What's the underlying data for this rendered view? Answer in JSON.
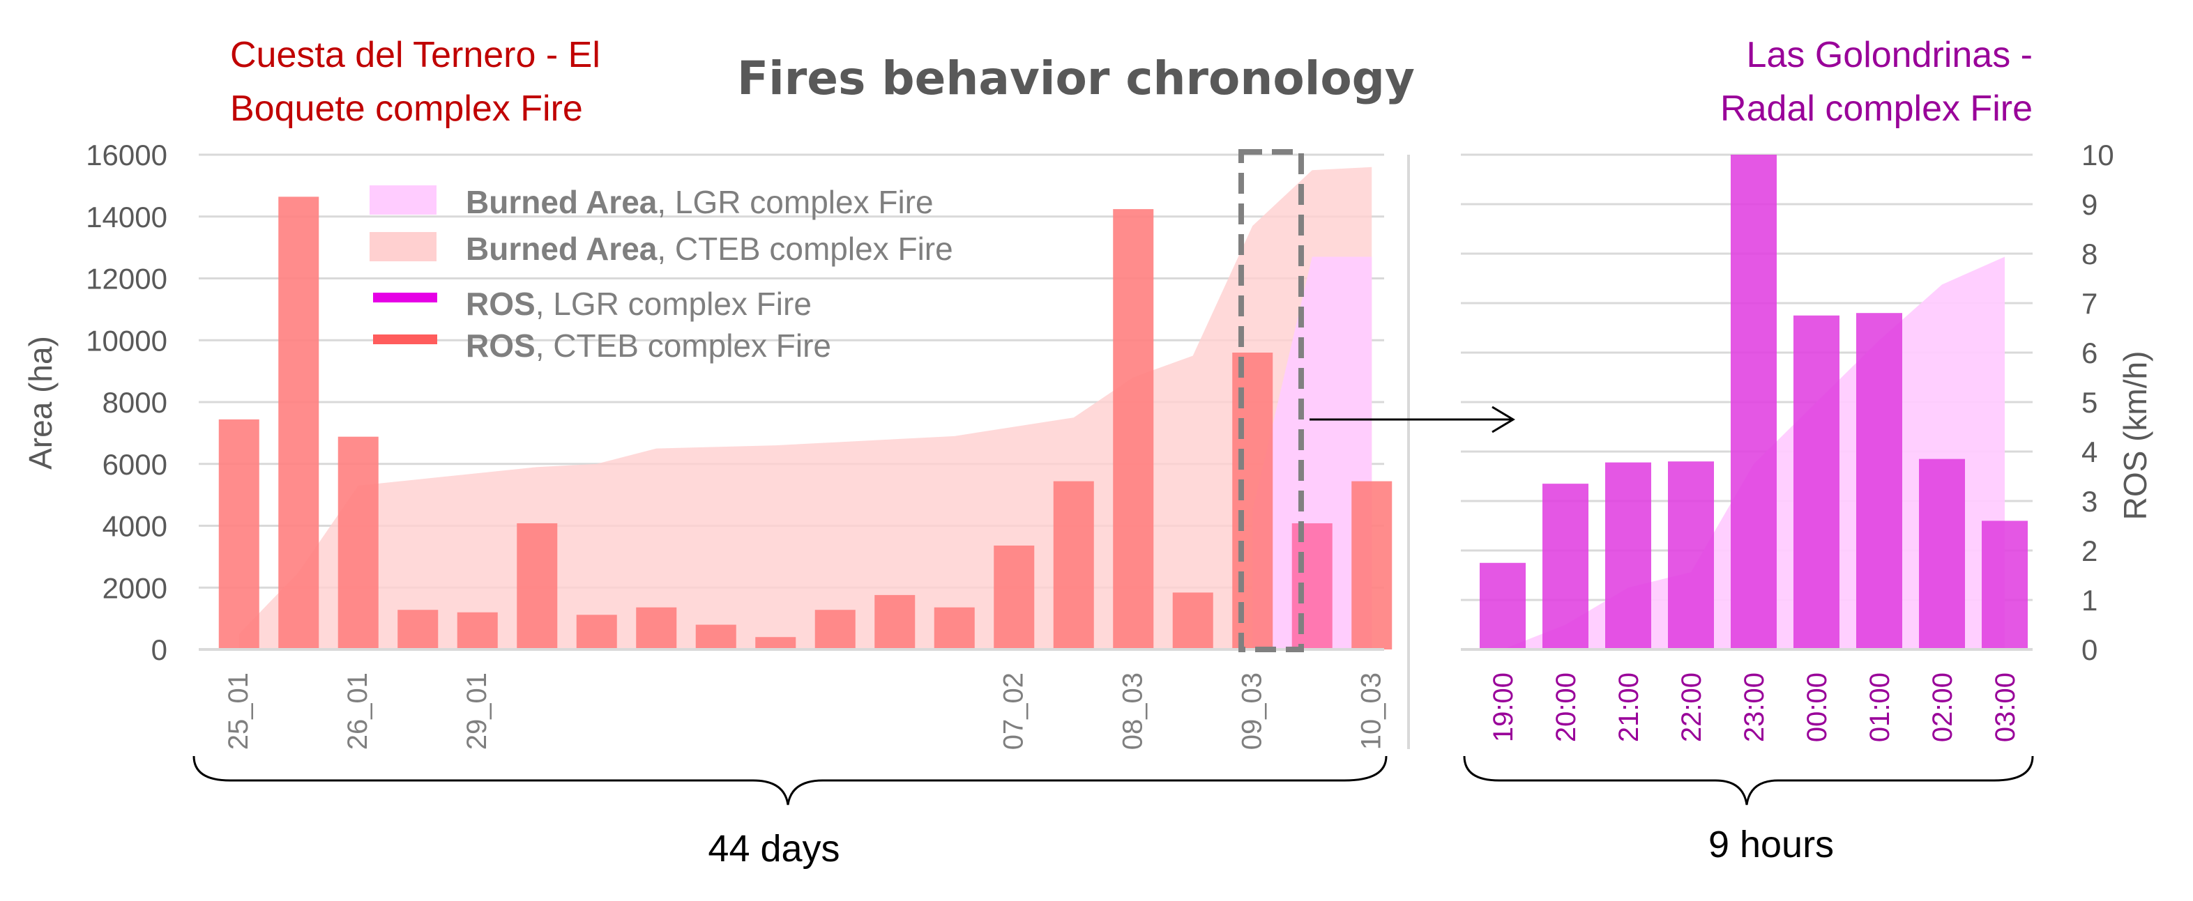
{
  "title": "Fires behavior chronology",
  "fire_labels": {
    "left_line1": "Cuesta del Ternero - El",
    "left_line2": "Boquete complex Fire",
    "right_line1": "Las Golondrinas -",
    "right_line2": "Radal complex Fire"
  },
  "legend": [
    {
      "bold": "Burned Area",
      "rest": ", LGR complex Fire",
      "color": "#ffccff",
      "kind": "area"
    },
    {
      "bold": "Burned Area",
      "rest": ", CTEB complex Fire",
      "color": "#ffd0d0",
      "kind": "area"
    },
    {
      "bold": "ROS",
      "rest": ", LGR complex Fire",
      "color": "#e600e6",
      "kind": "line"
    },
    {
      "bold": "ROS",
      "rest": ", CTEB complex Fire",
      "color": "#ff5c5c",
      "kind": "line"
    }
  ],
  "colors": {
    "cteb_bar": "#ff7f7f",
    "cteb_area": "#ffd0d0",
    "lgr_bar": "#e040e0",
    "lgr_area": "#ffccff",
    "zoom_box": "#808080"
  },
  "span_labels": {
    "left": "44 days",
    "right": "9 hours"
  },
  "chart_data": [
    {
      "type": "bar",
      "panel": "left",
      "ylabel": "Area (ha)",
      "ylim": [
        0,
        16000
      ],
      "yticks": [
        0,
        2000,
        4000,
        6000,
        8000,
        10000,
        12000,
        14000,
        16000
      ],
      "y2lim": [
        0,
        10
      ],
      "x_labels": [
        {
          "index": 0,
          "label": "25_01"
        },
        {
          "index": 2,
          "label": "26_01"
        },
        {
          "index": 4,
          "label": "29_01"
        },
        {
          "index": 13,
          "label": "07_02"
        },
        {
          "index": 15,
          "label": "08_03"
        },
        {
          "index": 17,
          "label": "09_03"
        },
        {
          "index": 19,
          "label": "10_03"
        }
      ],
      "series": [
        {
          "name": "ROS, CTEB complex Fire",
          "axis": "y2",
          "values": [
            4.65,
            9.15,
            4.3,
            0.8,
            0.75,
            2.55,
            0.7,
            0.85,
            0.5,
            0.25,
            0.8,
            1.1,
            0.85,
            2.1,
            3.4,
            8.9,
            1.15,
            6.0,
            null,
            3.4
          ]
        },
        {
          "name": "ROS, LGR complex Fire",
          "axis": "y2",
          "values": [
            null,
            null,
            null,
            null,
            null,
            null,
            null,
            null,
            null,
            null,
            null,
            null,
            null,
            null,
            null,
            null,
            null,
            null,
            2.55,
            null
          ]
        },
        {
          "name": "Burned Area, CTEB complex Fire",
          "axis": "y",
          "values": [
            500,
            2500,
            5300,
            5500,
            5700,
            5900,
            6000,
            6500,
            6550,
            6600,
            6700,
            6800,
            6900,
            7200,
            7500,
            8800,
            9500,
            13700,
            15500,
            15600
          ]
        },
        {
          "name": "Burned Area, LGR complex Fire",
          "axis": "y",
          "values": [
            null,
            null,
            null,
            null,
            null,
            null,
            null,
            null,
            null,
            null,
            null,
            null,
            null,
            null,
            null,
            null,
            null,
            4500,
            12700,
            12700
          ]
        }
      ]
    },
    {
      "type": "bar",
      "panel": "right",
      "ylabel": "ROS (km/h)",
      "ylim": [
        0,
        16000
      ],
      "y2lim": [
        0,
        10
      ],
      "y2ticks": [
        0,
        1,
        2,
        3,
        4,
        5,
        6,
        7,
        8,
        9,
        10
      ],
      "categories": [
        "19:00",
        "20:00",
        "21:00",
        "22:00",
        "23:00",
        "00:00",
        "01:00",
        "02:00",
        "03:00"
      ],
      "series": [
        {
          "name": "ROS, LGR complex Fire",
          "axis": "y2",
          "values": [
            1.75,
            3.35,
            3.78,
            3.8,
            10.0,
            6.75,
            6.8,
            3.85,
            2.6
          ]
        },
        {
          "name": "Burned Area, LGR complex Fire",
          "axis": "y",
          "values": [
            0,
            800,
            2000,
            2500,
            6000,
            8000,
            10000,
            11800,
            12700
          ]
        }
      ]
    }
  ]
}
